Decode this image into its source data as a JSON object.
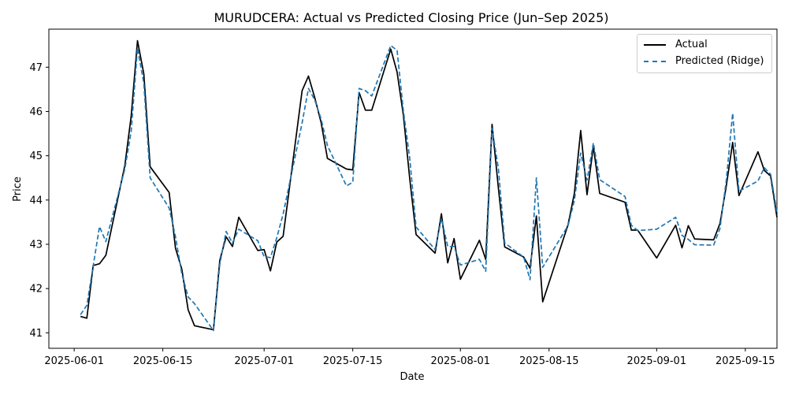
{
  "chart_data": {
    "type": "line",
    "title": "MURUDCERA: Actual vs Predicted Closing Price (Jun–Sep 2025)",
    "xlabel": "Date",
    "ylabel": "Price",
    "xlim": [
      "2025-05-28",
      "2025-09-20"
    ],
    "ylim": [
      40.65,
      47.86
    ],
    "x_ticks": [
      "2025-06-01",
      "2025-06-15",
      "2025-07-01",
      "2025-07-15",
      "2025-08-01",
      "2025-08-15",
      "2025-09-01",
      "2025-09-15"
    ],
    "y_ticks": [
      41,
      42,
      43,
      44,
      45,
      46,
      47
    ],
    "grid": false,
    "legend": "upper right",
    "series": [
      {
        "name": "Actual",
        "color": "#000000",
        "style": "solid",
        "points": [
          [
            "2025-06-02",
            41.37
          ],
          [
            "2025-06-03",
            41.33
          ],
          [
            "2025-06-04",
            42.52
          ],
          [
            "2025-06-05",
            42.56
          ],
          [
            "2025-06-06",
            42.75
          ],
          [
            "2025-06-09",
            44.78
          ],
          [
            "2025-06-10",
            45.89
          ],
          [
            "2025-06-11",
            47.6
          ],
          [
            "2025-06-12",
            46.85
          ],
          [
            "2025-06-13",
            44.75
          ],
          [
            "2025-06-16",
            44.17
          ],
          [
            "2025-06-17",
            42.91
          ],
          [
            "2025-06-18",
            42.44
          ],
          [
            "2025-06-19",
            41.52
          ],
          [
            "2025-06-20",
            41.16
          ],
          [
            "2025-06-23",
            41.07
          ],
          [
            "2025-06-24",
            42.64
          ],
          [
            "2025-06-25",
            43.17
          ],
          [
            "2025-06-26",
            42.95
          ],
          [
            "2025-06-27",
            43.61
          ],
          [
            "2025-06-30",
            42.86
          ],
          [
            "2025-07-01",
            42.88
          ],
          [
            "2025-07-02",
            42.4
          ],
          [
            "2025-07-03",
            43.05
          ],
          [
            "2025-07-04",
            43.18
          ],
          [
            "2025-07-07",
            46.47
          ],
          [
            "2025-07-08",
            46.8
          ],
          [
            "2025-07-09",
            46.31
          ],
          [
            "2025-07-10",
            45.75
          ],
          [
            "2025-07-11",
            44.94
          ],
          [
            "2025-07-14",
            44.7
          ],
          [
            "2025-07-15",
            44.68
          ],
          [
            "2025-07-16",
            46.43
          ],
          [
            "2025-07-17",
            46.03
          ],
          [
            "2025-07-18",
            46.03
          ],
          [
            "2025-07-21",
            47.41
          ],
          [
            "2025-07-22",
            46.89
          ],
          [
            "2025-07-23",
            45.91
          ],
          [
            "2025-07-24",
            44.48
          ],
          [
            "2025-07-25",
            43.22
          ],
          [
            "2025-07-28",
            42.8
          ],
          [
            "2025-07-29",
            43.69
          ],
          [
            "2025-07-30",
            42.58
          ],
          [
            "2025-07-31",
            43.13
          ],
          [
            "2025-08-01",
            42.21
          ],
          [
            "2025-08-04",
            43.09
          ],
          [
            "2025-08-05",
            42.66
          ],
          [
            "2025-08-06",
            45.71
          ],
          [
            "2025-08-07",
            44.27
          ],
          [
            "2025-08-08",
            42.94
          ],
          [
            "2025-08-11",
            42.71
          ],
          [
            "2025-08-12",
            42.46
          ],
          [
            "2025-08-13",
            43.64
          ],
          [
            "2025-08-14",
            41.7
          ],
          [
            "2025-08-18",
            43.44
          ],
          [
            "2025-08-19",
            44.15
          ],
          [
            "2025-08-20",
            45.57
          ],
          [
            "2025-08-21",
            44.12
          ],
          [
            "2025-08-22",
            45.21
          ],
          [
            "2025-08-23",
            44.15
          ],
          [
            "2025-08-27",
            43.95
          ],
          [
            "2025-08-28",
            43.32
          ],
          [
            "2025-08-29",
            43.32
          ],
          [
            "2025-09-01",
            42.69
          ],
          [
            "2025-09-04",
            43.43
          ],
          [
            "2025-09-05",
            42.92
          ],
          [
            "2025-09-06",
            43.42
          ],
          [
            "2025-09-07",
            43.12
          ],
          [
            "2025-09-10",
            43.1
          ],
          [
            "2025-09-11",
            43.47
          ],
          [
            "2025-09-12",
            44.32
          ],
          [
            "2025-09-13",
            45.3
          ],
          [
            "2025-09-14",
            44.1
          ],
          [
            "2025-09-17",
            45.09
          ],
          [
            "2025-09-18",
            44.67
          ],
          [
            "2025-09-19",
            44.54
          ],
          [
            "2025-09-20",
            43.61
          ]
        ]
      },
      {
        "name": "Predicted (Ridge)",
        "color": "#1f77b4",
        "style": "dashed",
        "points": [
          [
            "2025-06-02",
            41.41
          ],
          [
            "2025-06-03",
            41.62
          ],
          [
            "2025-06-04",
            42.51
          ],
          [
            "2025-06-05",
            43.4
          ],
          [
            "2025-06-06",
            43.06
          ],
          [
            "2025-06-09",
            44.7
          ],
          [
            "2025-06-10",
            45.55
          ],
          [
            "2025-06-11",
            47.43
          ],
          [
            "2025-06-12",
            46.64
          ],
          [
            "2025-06-13",
            44.5
          ],
          [
            "2025-06-16",
            43.82
          ],
          [
            "2025-06-17",
            43.17
          ],
          [
            "2025-06-18",
            42.33
          ],
          [
            "2025-06-19",
            41.81
          ],
          [
            "2025-06-20",
            41.66
          ],
          [
            "2025-06-23",
            41.05
          ],
          [
            "2025-06-24",
            42.55
          ],
          [
            "2025-06-25",
            43.29
          ],
          [
            "2025-06-26",
            43.03
          ],
          [
            "2025-06-27",
            43.34
          ],
          [
            "2025-06-30",
            43.08
          ],
          [
            "2025-07-01",
            42.72
          ],
          [
            "2025-07-02",
            42.7
          ],
          [
            "2025-07-03",
            43.15
          ],
          [
            "2025-07-04",
            43.68
          ],
          [
            "2025-07-07",
            45.74
          ],
          [
            "2025-07-08",
            46.52
          ],
          [
            "2025-07-09",
            46.26
          ],
          [
            "2025-07-10",
            45.83
          ],
          [
            "2025-07-11",
            45.23
          ],
          [
            "2025-07-14",
            44.32
          ],
          [
            "2025-07-15",
            44.4
          ],
          [
            "2025-07-16",
            46.52
          ],
          [
            "2025-07-17",
            46.47
          ],
          [
            "2025-07-18",
            46.35
          ],
          [
            "2025-07-21",
            47.49
          ],
          [
            "2025-07-22",
            47.38
          ],
          [
            "2025-07-23",
            46.01
          ],
          [
            "2025-07-24",
            44.94
          ],
          [
            "2025-07-25",
            43.39
          ],
          [
            "2025-07-28",
            42.88
          ],
          [
            "2025-07-29",
            43.58
          ],
          [
            "2025-07-30",
            42.95
          ],
          [
            "2025-07-31",
            42.95
          ],
          [
            "2025-08-01",
            42.53
          ],
          [
            "2025-08-04",
            42.66
          ],
          [
            "2025-08-05",
            42.39
          ],
          [
            "2025-08-06",
            45.62
          ],
          [
            "2025-08-07",
            44.71
          ],
          [
            "2025-08-08",
            43.03
          ],
          [
            "2025-08-11",
            42.71
          ],
          [
            "2025-08-12",
            42.2
          ],
          [
            "2025-08-13",
            44.5
          ],
          [
            "2025-08-14",
            42.48
          ],
          [
            "2025-08-18",
            43.42
          ],
          [
            "2025-08-19",
            43.99
          ],
          [
            "2025-08-20",
            45.06
          ],
          [
            "2025-08-21",
            44.45
          ],
          [
            "2025-08-22",
            45.29
          ],
          [
            "2025-08-23",
            44.46
          ],
          [
            "2025-08-27",
            44.08
          ],
          [
            "2025-08-28",
            43.43
          ],
          [
            "2025-08-29",
            43.31
          ],
          [
            "2025-09-01",
            43.34
          ],
          [
            "2025-09-04",
            43.61
          ],
          [
            "2025-09-05",
            43.2
          ],
          [
            "2025-09-06",
            43.11
          ],
          [
            "2025-09-07",
            42.99
          ],
          [
            "2025-09-10",
            42.98
          ],
          [
            "2025-09-11",
            43.36
          ],
          [
            "2025-09-12",
            44.45
          ],
          [
            "2025-09-13",
            45.96
          ],
          [
            "2025-09-14",
            44.2
          ],
          [
            "2025-09-17",
            44.43
          ],
          [
            "2025-09-18",
            44.73
          ],
          [
            "2025-09-19",
            44.58
          ],
          [
            "2025-09-20",
            43.72
          ]
        ]
      }
    ]
  }
}
